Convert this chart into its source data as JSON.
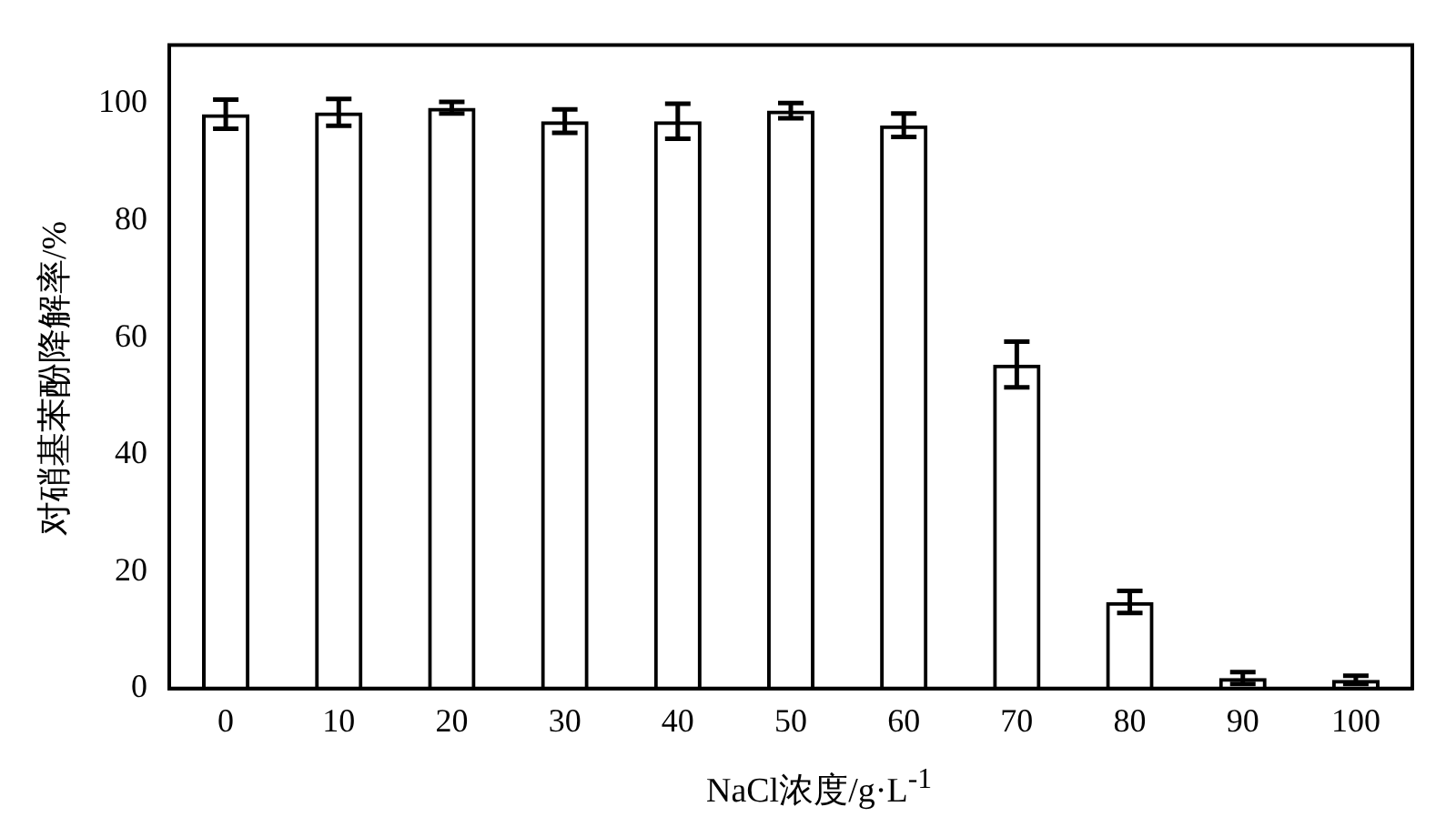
{
  "chart_data": {
    "type": "bar",
    "xlabel": "NaCl浓度/g·L$^{-1}$",
    "ylabel": "对硝基苯酚降解率/%",
    "categories": [
      "0",
      "10",
      "20",
      "30",
      "40",
      "50",
      "60",
      "70",
      "80",
      "90",
      "100"
    ],
    "series": [
      {
        "color": "#000000",
        "values": [
          98.2,
          98.5,
          99.3,
          97,
          97,
          98.8,
          96.3,
          55.4,
          14.8,
          1.8,
          1.5
        ],
        "errors": [
          2.5,
          2.3,
          1,
          2,
          3,
          1.3,
          2,
          3.9,
          1.9,
          1,
          0.7
        ]
      }
    ],
    "ylim": [
      0,
      110
    ],
    "yticks": [
      0,
      20,
      40,
      60,
      80,
      100
    ],
    "grid": false,
    "legend": false
  }
}
